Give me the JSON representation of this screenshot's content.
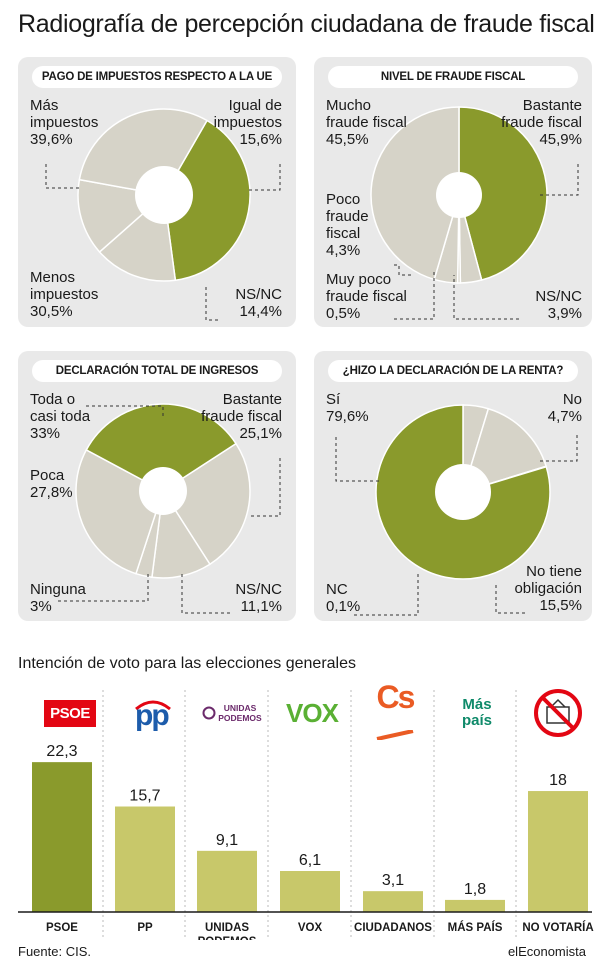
{
  "title": "Radiografía de percepción ciudadana de fraude fiscal",
  "colors": {
    "green": "#8a9a2c",
    "beige": "#d6d3c8",
    "bar": "#c8c86a",
    "panel": "#e9e9e9"
  },
  "chart_data": [
    {
      "type": "pie",
      "title": "PAGO DE IMPUESTOS RESPECTO A LA UE",
      "slices": [
        {
          "label_lines": [
            "Más",
            "impuestos"
          ],
          "value": "39,6%",
          "share": 39.6
        },
        {
          "label_lines": [
            "Igual de",
            "impuestos"
          ],
          "value": "15,6%",
          "share": 15.6
        },
        {
          "label_lines": [
            "NS/NC"
          ],
          "value": "14,4%",
          "share": 14.4
        },
        {
          "label_lines": [
            "Menos",
            "impuestos"
          ],
          "value": "30,5%",
          "share": 30.5
        }
      ]
    },
    {
      "type": "pie",
      "title": "NIVEL DE FRAUDE FISCAL",
      "slices": [
        {
          "label_lines": [
            "Bastante",
            "fraude fiscal"
          ],
          "value": "45,9%",
          "share": 45.9
        },
        {
          "label_lines": [
            "NS/NC"
          ],
          "value": "3,9%",
          "share": 3.9
        },
        {
          "label_lines": [
            "Muy poco",
            "fraude fiscal"
          ],
          "value": "0,5%",
          "share": 0.5
        },
        {
          "label_lines": [
            "Poco",
            "fraude",
            "fiscal"
          ],
          "value": "4,3%",
          "share": 4.3
        },
        {
          "label_lines": [
            "Mucho",
            "fraude fiscal"
          ],
          "value": "45,5%",
          "share": 45.5
        }
      ]
    },
    {
      "type": "pie",
      "title": "DECLARACIÓN TOTAL DE INGRESOS",
      "slices": [
        {
          "label_lines": [
            "Bastante",
            "fraude fiscal"
          ],
          "value": "25,1%",
          "share": 25.1
        },
        {
          "label_lines": [
            "NS/NC"
          ],
          "value": "11,1%",
          "share": 11.1
        },
        {
          "label_lines": [
            "Ninguna"
          ],
          "value": "3%",
          "share": 3
        },
        {
          "label_lines": [
            "Poca"
          ],
          "value": "27,8%",
          "share": 27.8
        },
        {
          "label_lines": [
            "Toda o",
            "casi toda"
          ],
          "value": "33%",
          "share": 33
        }
      ]
    },
    {
      "type": "pie",
      "title": "¿HIZO LA DECLARACIÓN DE LA RENTA?",
      "slices": [
        {
          "label_lines": [
            "No"
          ],
          "value": "4,7%",
          "share": 4.7
        },
        {
          "label_lines": [
            "No tiene",
            "obligación"
          ],
          "value": "15,5%",
          "share": 15.5
        },
        {
          "label_lines": [
            "NC"
          ],
          "value": "0,1%",
          "share": 0.1
        },
        {
          "label_lines": [
            "Sí"
          ],
          "value": "79,6%",
          "share": 79.6
        }
      ]
    },
    {
      "type": "bar",
      "title": "Intención de voto para las elecciones generales",
      "categories": [
        "PSOE",
        "PP",
        "UNIDAS PODEMOS",
        "VOX",
        "CIUDADANOS",
        "MÁS PAÍS",
        "NO VOTARÍA"
      ],
      "values": [
        22.3,
        15.7,
        9.1,
        6.1,
        3.1,
        1.8,
        18
      ],
      "value_labels": [
        "22,3",
        "15,7",
        "9,1",
        "6,1",
        "3,1",
        "1,8",
        "18"
      ],
      "ylim": [
        0,
        25
      ]
    }
  ],
  "logos": {
    "psoe": "PSOE",
    "pp": "pp",
    "unidas_line1": "UNIDAS",
    "unidas_line2": "PODEMOS",
    "vox": "VOX",
    "cs": "Cs",
    "maspais_line1": "Más",
    "maspais_line2": "país"
  },
  "category_labels": {
    "unidas_line1": "UNIDAS",
    "unidas_line2": "PODEMOS"
  },
  "footer": {
    "source": "Fuente: CIS.",
    "brand": "elEconomista"
  }
}
